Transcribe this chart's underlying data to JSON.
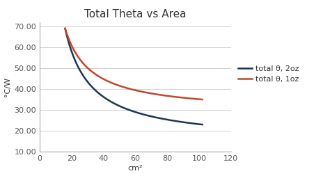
{
  "title": "Total Theta vs Area",
  "xlabel": "cm²",
  "ylabel": "°C/W",
  "xlim": [
    0,
    120
  ],
  "ylim": [
    10,
    72
  ],
  "xticks": [
    0,
    20,
    40,
    60,
    80,
    100,
    120
  ],
  "yticks": [
    10.0,
    20.0,
    30.0,
    40.0,
    50.0,
    60.0,
    70.0
  ],
  "x_start": 16,
  "x_end": 102,
  "color_2oz": "#1c3557",
  "color_1oz": "#c0472a",
  "legend_2oz": "total θ, 2oz",
  "legend_1oz": "total θ, 1oz",
  "background_color": "#ffffff",
  "grid_color": "#d0d0d0",
  "title_fontsize": 11,
  "label_fontsize": 8,
  "tick_fontsize": 8,
  "legend_fontsize": 8,
  "line_width": 1.8,
  "figsize": [
    4.74,
    2.66
  ],
  "dpi": 100
}
